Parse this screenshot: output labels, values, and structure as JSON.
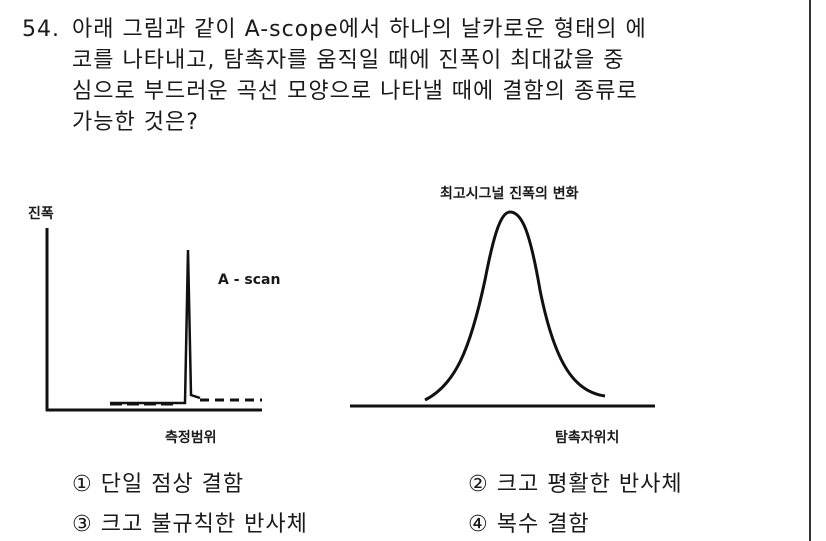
{
  "question": {
    "number": "54.",
    "lines": [
      "아래 그림과 같이 A-scope에서 하나의 날카로운 형태의 에",
      "코를 나타내고, 탐촉자를 움직일 때에 진폭이 최대값을 중",
      "심으로 부드러운 곡선 모양으로 나타낼 때에 결함의 종류로",
      "가능한 것은?"
    ]
  },
  "figure_left": {
    "y_label": "진폭",
    "signal_label": "A - scan",
    "x_label": "측정범위"
  },
  "figure_right": {
    "title": "최고시그널 진폭의 변화",
    "x_label": "탐촉자위치"
  },
  "options": [
    "① 단일 점상 결함",
    "② 크고 평활한 반사체",
    "③ 크고 불규칙한 반사체",
    "④ 복수 결함"
  ]
}
